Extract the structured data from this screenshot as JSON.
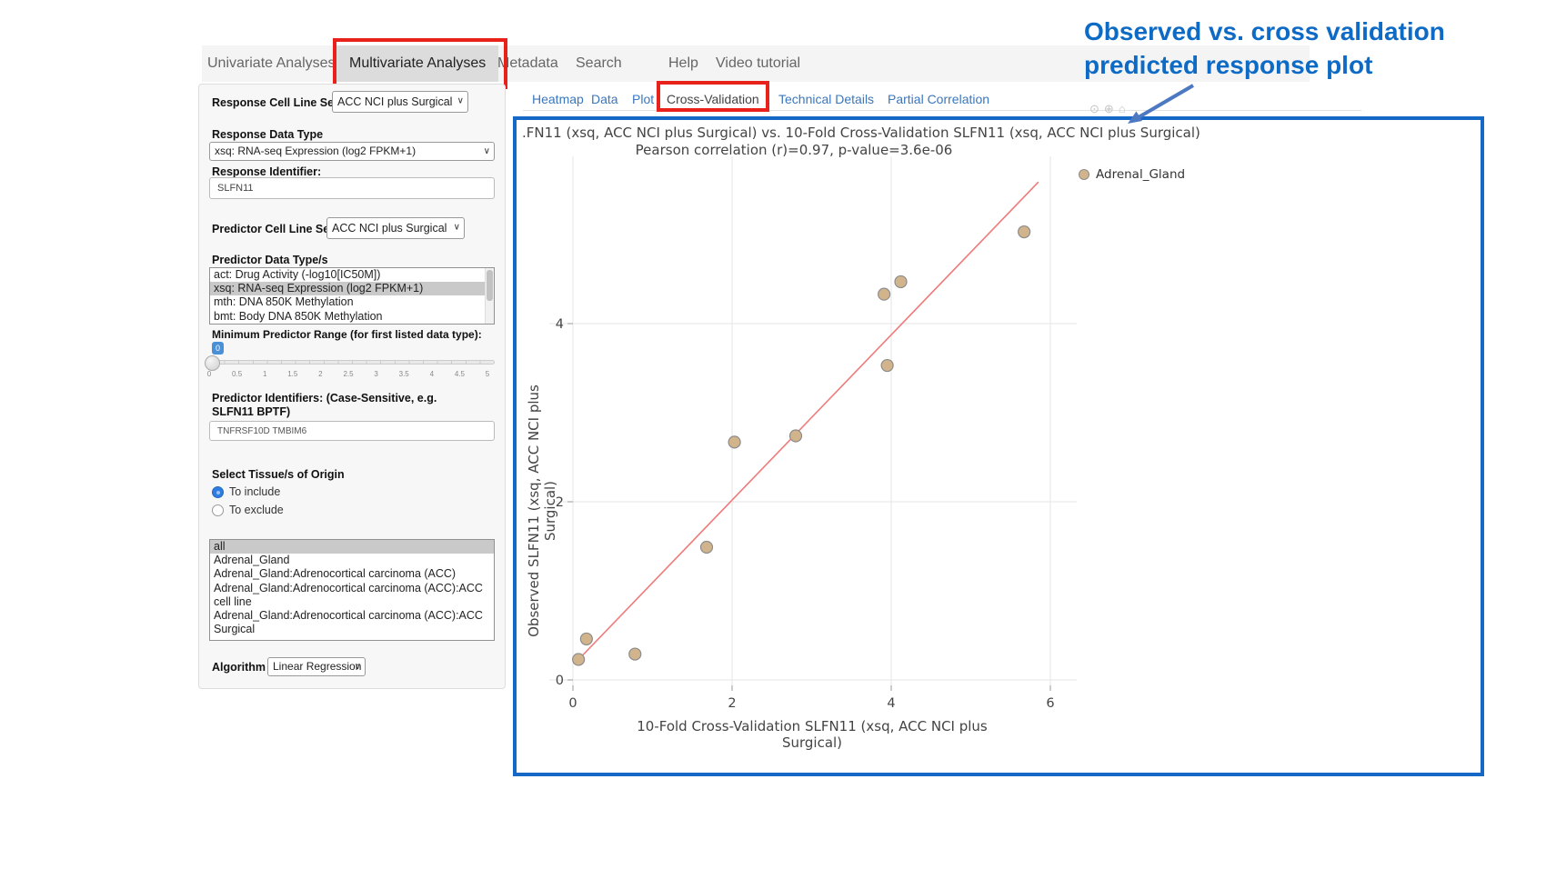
{
  "nav": {
    "items": [
      {
        "label": "Univariate Analyses",
        "active": false
      },
      {
        "label": "Multivariate Analyses",
        "active": true
      },
      {
        "label": "Metadata",
        "active": false
      },
      {
        "label": "Search",
        "active": false
      },
      {
        "label": "Help",
        "active": false
      },
      {
        "label": "Video tutorial",
        "active": false
      }
    ]
  },
  "annotation": {
    "headline_line1": "Observed vs. cross validation",
    "headline_line2": "predicted response plot",
    "headline_color": "#0e6bc5",
    "arrow_color": "#4d78c2",
    "highlight_box_color": "#e8221a"
  },
  "sidebar": {
    "response_cell_line_set": {
      "label": "Response Cell Line Set",
      "value": "ACC NCI plus Surgical"
    },
    "response_data_type": {
      "label": "Response Data Type",
      "value": "xsq: RNA-seq Expression (log2 FPKM+1)"
    },
    "response_identifier": {
      "label": "Response Identifier:",
      "value": "SLFN11"
    },
    "predictor_cell_line_set": {
      "label": "Predictor Cell Line Set",
      "value": "ACC NCI plus Surgical"
    },
    "predictor_data_types": {
      "label": "Predictor Data Type/s",
      "items": [
        "act: Drug Activity (-log10[IC50M])",
        "xsq: RNA-seq Expression (log2 FPKM+1)",
        "mth: DNA 850K Methylation",
        "bmt: Body DNA 850K Methylation"
      ],
      "selected": "xsq: RNA-seq Expression (log2 FPKM+1)"
    },
    "min_predictor_range": {
      "label": "Minimum Predictor Range (for first listed data type):",
      "value": "0",
      "ticks": [
        "0",
        "0.5",
        "1",
        "1.5",
        "2",
        "2.5",
        "3",
        "3.5",
        "4",
        "4.5",
        "5"
      ]
    },
    "predictor_identifiers": {
      "label": "Predictor Identifiers: (Case-Sensitive, e.g. SLFN11 BPTF)",
      "value": "TNFRSF10D TMBIM6"
    },
    "tissue_origin": {
      "label": "Select Tissue/s of Origin",
      "options": [
        "To include",
        "To exclude"
      ],
      "selected_option": "To include",
      "items": [
        "all",
        "Adrenal_Gland",
        "Adrenal_Gland:Adrenocortical carcinoma (ACC)",
        "Adrenal_Gland:Adrenocortical carcinoma (ACC):ACC cell line",
        "Adrenal_Gland:Adrenocortical carcinoma (ACC):ACC Surgical"
      ],
      "selected_item": "all"
    },
    "algorithm": {
      "label": "Algorithm",
      "value": "Linear Regression"
    }
  },
  "tabs": {
    "items": [
      {
        "label": "Heatmap",
        "active": false
      },
      {
        "label": "Data",
        "active": false
      },
      {
        "label": "Plot",
        "active": false
      },
      {
        "label": "Cross-Validation",
        "active": true
      },
      {
        "label": "Technical Details",
        "active": false
      },
      {
        "label": "Partial Correlation",
        "active": false
      }
    ]
  },
  "chart_data": {
    "type": "scatter",
    "title": ".FN11 (xsq, ACC NCI plus Surgical) vs. 10-Fold Cross-Validation SLFN11 (xsq, ACC NCI plus Surgical)",
    "subtitle": "Pearson correlation (r)=0.97, p-value=3.6e-06",
    "xlabel": "10-Fold Cross-Validation SLFN11 (xsq, ACC NCI plus Surgical)",
    "ylabel": "Observed SLFN11 (xsq, ACC NCI plus Surgical)",
    "pearson_r": 0.97,
    "p_value": "3.6e-06",
    "xticks": [
      0,
      2,
      4,
      6
    ],
    "yticks": [
      0,
      2,
      4
    ],
    "xlim": [
      -0.3,
      6.3
    ],
    "ylim": [
      -0.3,
      5.9
    ],
    "grid": true,
    "legend_position": "top-right",
    "series": [
      {
        "name": "Adrenal_Gland",
        "marker_color": "#d2b48c",
        "marker_line_color": "#8c8c8c",
        "points": [
          [
            0.07,
            0.23
          ],
          [
            0.17,
            0.46
          ],
          [
            0.78,
            0.29
          ],
          [
            1.68,
            1.49
          ],
          [
            2.03,
            2.67
          ],
          [
            2.8,
            2.74
          ],
          [
            3.91,
            4.33
          ],
          [
            3.95,
            3.53
          ],
          [
            4.12,
            4.47
          ],
          [
            5.67,
            5.03
          ]
        ]
      }
    ],
    "trendline": {
      "color": "#ef7a7a",
      "from": [
        0.05,
        0.21
      ],
      "to": [
        5.85,
        5.59
      ]
    },
    "grid_color": "#e6e6e6",
    "tick_color": "#444444",
    "border_color": "#1668c6"
  },
  "modebar": {
    "icons": [
      "camera-icon",
      "zoom-icon",
      "home-icon"
    ]
  }
}
